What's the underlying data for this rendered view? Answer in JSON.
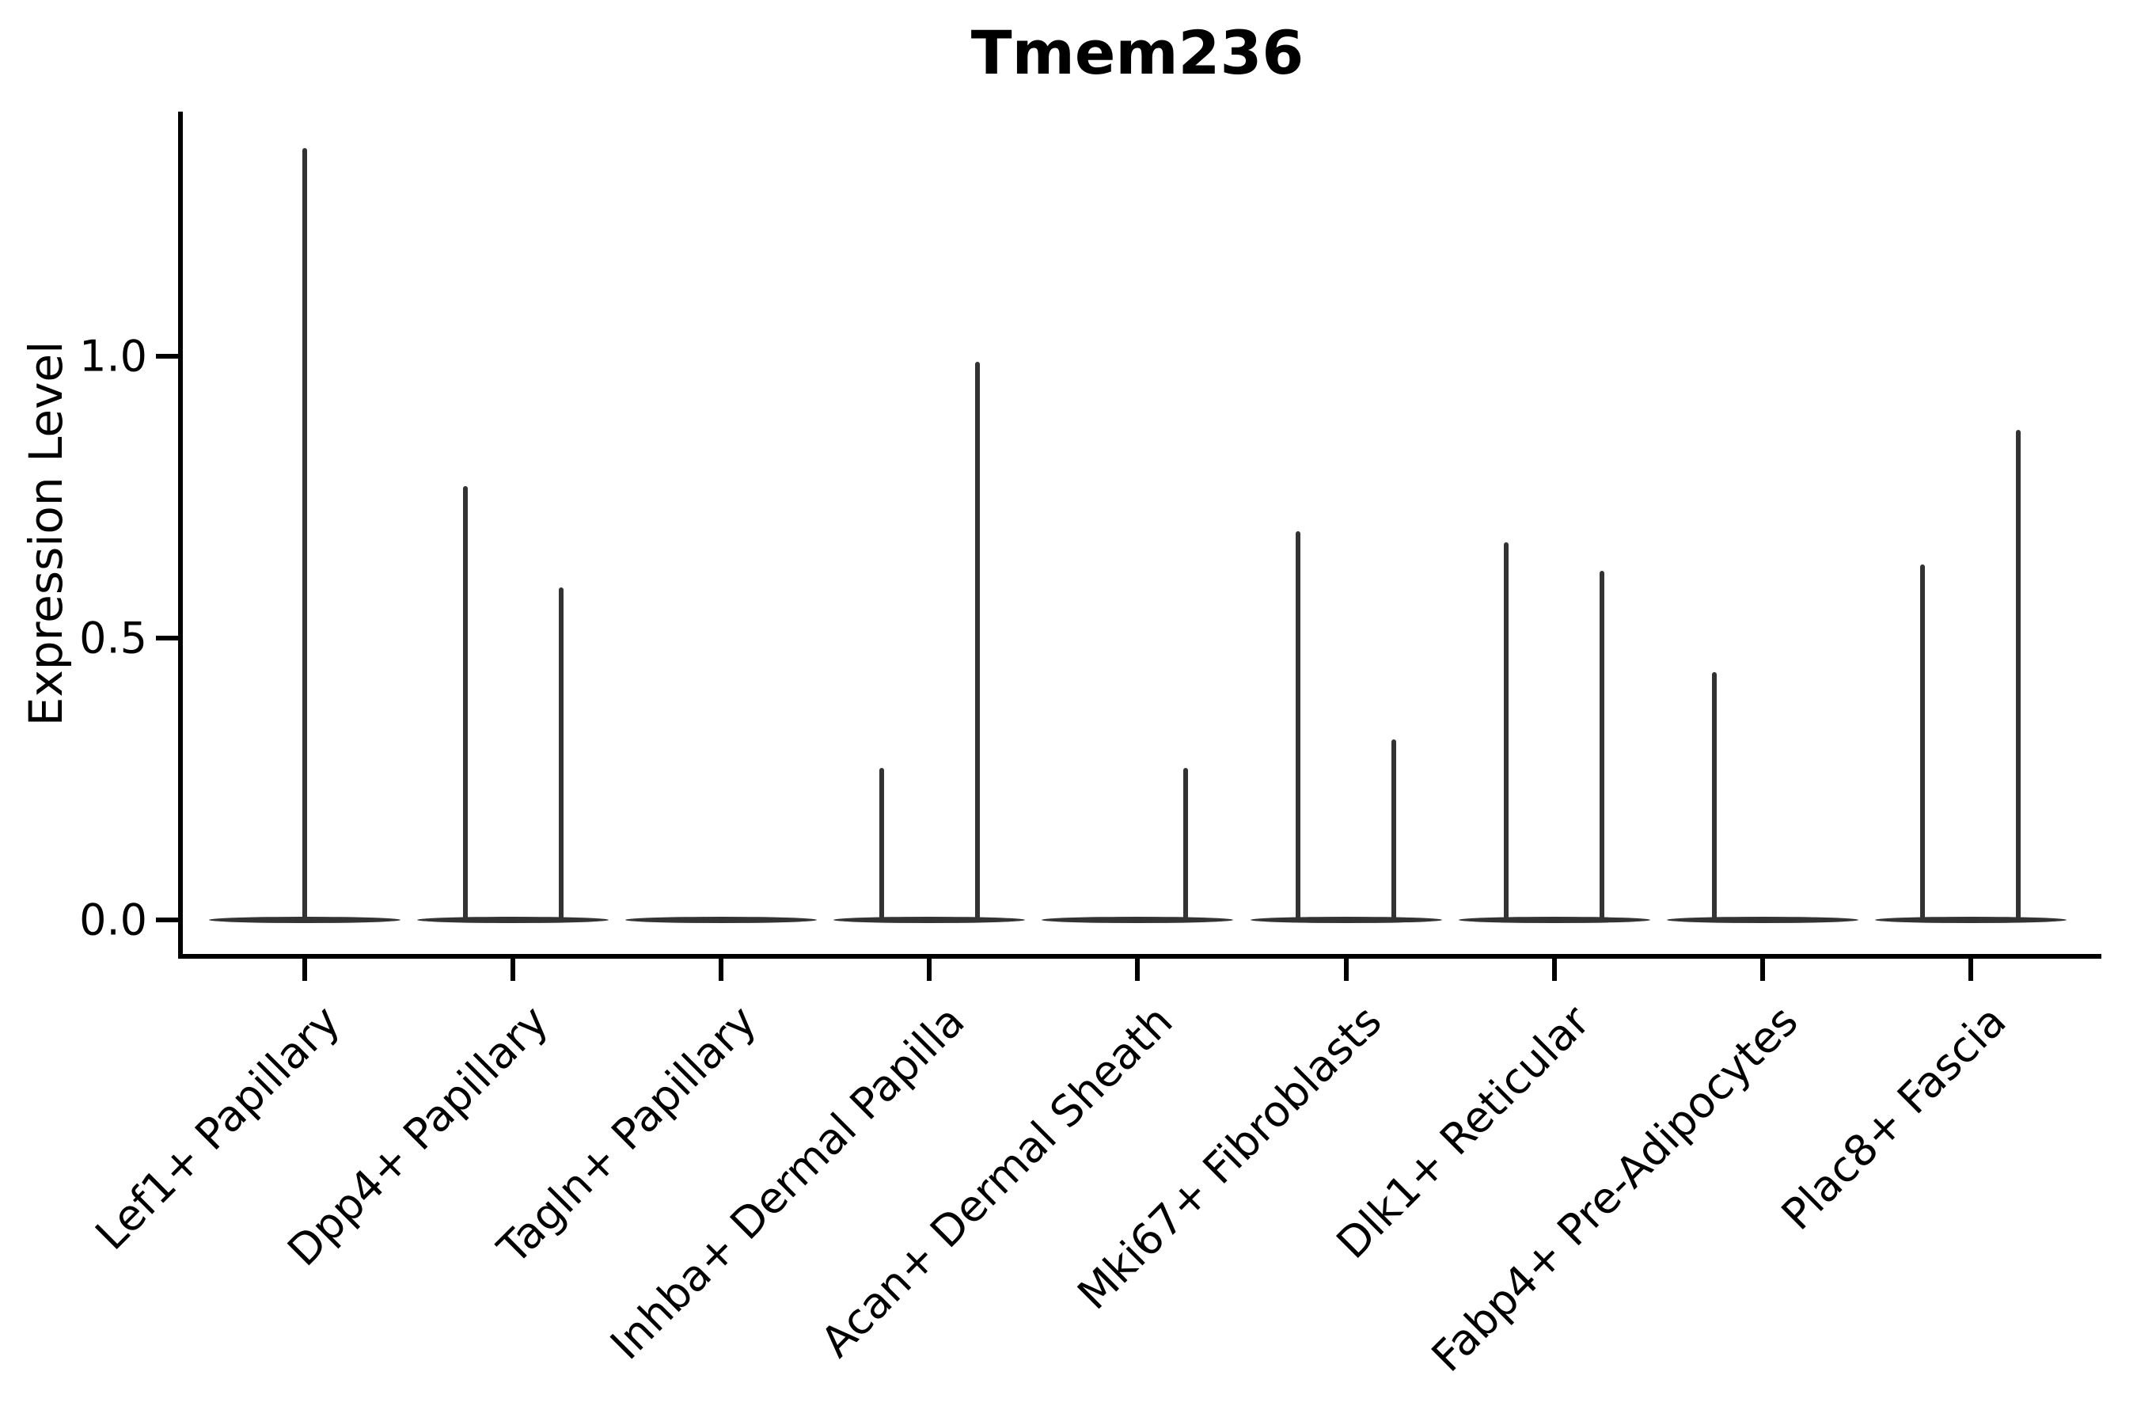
{
  "chart_data": {
    "type": "violin",
    "title": "Tmem236",
    "xlabel": "",
    "ylabel": "Expression Level",
    "yticks": [
      0.0,
      0.5,
      1.0
    ],
    "ylim": [
      0,
      1.43
    ],
    "grid": false,
    "legend": "none",
    "line_color": "#333333",
    "axis_color": "#000000",
    "categories": [
      "Lef1+ Papillary",
      "Dpp4+ Papillary",
      "Tagln+ Papillary",
      "Inhba+ Dermal Papilla",
      "Acan+ Dermal Sheath",
      "Mki67+ Fibroblasts",
      "Dlk1+ Reticular",
      "Fabp4+ Pre-Adipocytes",
      "Plac8+ Fascia"
    ],
    "violins": [
      {
        "category": "Lef1+ Papillary",
        "baseline": 0.0,
        "spikes": [
          {
            "position": "center",
            "max": 1.37
          }
        ]
      },
      {
        "category": "Dpp4+ Papillary",
        "baseline": 0.0,
        "spikes": [
          {
            "position": "left",
            "max": 0.77
          },
          {
            "position": "right",
            "max": 0.59
          }
        ]
      },
      {
        "category": "Tagln+ Papillary",
        "baseline": 0.0,
        "spikes": []
      },
      {
        "category": "Inhba+ Dermal Papilla",
        "baseline": 0.0,
        "spikes": [
          {
            "position": "left",
            "max": 0.27
          },
          {
            "position": "right",
            "max": 0.99
          }
        ]
      },
      {
        "category": "Acan+ Dermal Sheath",
        "baseline": 0.0,
        "spikes": [
          {
            "position": "right",
            "max": 0.27
          }
        ]
      },
      {
        "category": "Mki67+ Fibroblasts",
        "baseline": 0.0,
        "spikes": [
          {
            "position": "left",
            "max": 0.69
          },
          {
            "position": "right",
            "max": 0.32
          }
        ]
      },
      {
        "category": "Dlk1+ Reticular",
        "baseline": 0.0,
        "spikes": [
          {
            "position": "left",
            "max": 0.67
          },
          {
            "position": "right",
            "max": 0.62
          }
        ]
      },
      {
        "category": "Fabp4+ Pre-Adipocytes",
        "baseline": 0.0,
        "spikes": [
          {
            "position": "left",
            "max": 0.44
          }
        ]
      },
      {
        "category": "Plac8+ Fascia",
        "baseline": 0.0,
        "spikes": [
          {
            "position": "left",
            "max": 0.63
          },
          {
            "position": "right",
            "max": 0.87
          }
        ]
      }
    ]
  }
}
